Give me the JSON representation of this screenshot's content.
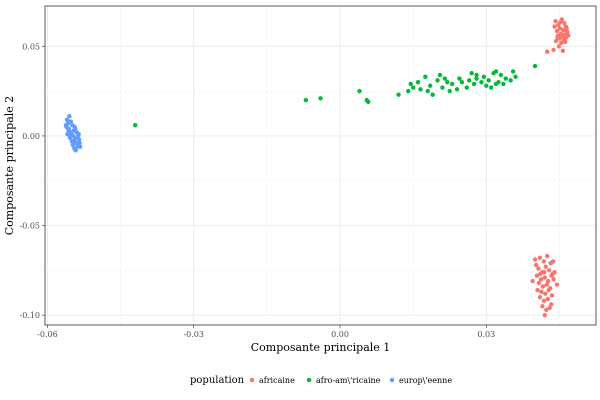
{
  "chart_data": {
    "type": "scatter",
    "title": "",
    "xlabel": "Composante principale 1",
    "ylabel": "Composante principale 2",
    "xlim": [
      -0.0605,
      0.0525
    ],
    "ylim": [
      -0.1055,
      0.0725
    ],
    "x_ticks": [
      -0.06,
      -0.03,
      0.0,
      0.03
    ],
    "x_tick_labels": [
      "-0.06",
      "-0.03",
      "0.00",
      "0.03"
    ],
    "y_ticks": [
      -0.1,
      -0.05,
      0.0,
      0.05
    ],
    "y_tick_labels": [
      "-0.10",
      "-0.05",
      "0.00",
      "0.05"
    ],
    "grid": true,
    "legend": {
      "title": "population",
      "placement": "bottom",
      "entries": [
        "africaine",
        "afro-am\\'ricaine",
        "europ\\'eenne"
      ]
    },
    "series": [
      {
        "name": "africaine",
        "color": "#F8766D",
        "points": [
          [
            0.0442,
            0.064
          ],
          [
            0.0455,
            0.065
          ],
          [
            0.046,
            0.063
          ],
          [
            0.0448,
            0.062
          ],
          [
            0.0463,
            0.061
          ],
          [
            0.0451,
            0.06
          ],
          [
            0.0458,
            0.059
          ],
          [
            0.0445,
            0.0585
          ],
          [
            0.0466,
            0.058
          ],
          [
            0.0453,
            0.057
          ],
          [
            0.0461,
            0.0565
          ],
          [
            0.0447,
            0.056
          ],
          [
            0.0456,
            0.0555
          ],
          [
            0.0464,
            0.055
          ],
          [
            0.045,
            0.0545
          ],
          [
            0.0459,
            0.054
          ],
          [
            0.0443,
            0.053
          ],
          [
            0.0462,
            0.0525
          ],
          [
            0.0454,
            0.052
          ],
          [
            0.0438,
            0.048
          ],
          [
            0.0425,
            0.047
          ],
          [
            0.0457,
            0.0475
          ],
          [
            0.0449,
            0.05
          ],
          [
            0.0465,
            0.06
          ],
          [
            0.044,
            0.061
          ],
          [
            0.0452,
            0.0635
          ],
          [
            0.0468,
            0.056
          ],
          [
            0.0446,
            0.055
          ],
          [
            0.0402,
            -0.072
          ],
          [
            0.041,
            -0.068
          ],
          [
            0.0418,
            -0.07
          ],
          [
            0.0425,
            -0.067
          ],
          [
            0.0432,
            -0.071
          ],
          [
            0.0407,
            -0.074
          ],
          [
            0.0415,
            -0.076
          ],
          [
            0.0422,
            -0.073
          ],
          [
            0.0429,
            -0.075
          ],
          [
            0.0436,
            -0.077
          ],
          [
            0.0404,
            -0.078
          ],
          [
            0.0412,
            -0.08
          ],
          [
            0.042,
            -0.079
          ],
          [
            0.0427,
            -0.081
          ],
          [
            0.0434,
            -0.078
          ],
          [
            0.0408,
            -0.082
          ],
          [
            0.0416,
            -0.084
          ],
          [
            0.0424,
            -0.083
          ],
          [
            0.0431,
            -0.085
          ],
          [
            0.0438,
            -0.08
          ],
          [
            0.0405,
            -0.086
          ],
          [
            0.0413,
            -0.087
          ],
          [
            0.0421,
            -0.088
          ],
          [
            0.0428,
            -0.086
          ],
          [
            0.0435,
            -0.089
          ],
          [
            0.041,
            -0.09
          ],
          [
            0.0418,
            -0.092
          ],
          [
            0.0426,
            -0.091
          ],
          [
            0.0433,
            -0.094
          ],
          [
            0.0415,
            -0.095
          ],
          [
            0.0423,
            -0.097
          ],
          [
            0.043,
            -0.096
          ],
          [
            0.042,
            -0.1
          ],
          [
            0.044,
            -0.076
          ],
          [
            0.0395,
            -0.081
          ],
          [
            0.0445,
            -0.083
          ],
          [
            0.04,
            -0.069
          ],
          [
            0.0437,
            -0.07
          ],
          [
            0.0419,
            -0.076
          ],
          [
            0.0411,
            -0.077
          ]
        ]
      },
      {
        "name": "afro-am\\'ricaine",
        "color": "#00BA38",
        "points": [
          [
            -0.042,
            0.006
          ],
          [
            -0.007,
            0.02
          ],
          [
            -0.004,
            0.021
          ],
          [
            0.004,
            0.025
          ],
          [
            0.0055,
            0.02
          ],
          [
            0.0058,
            0.019
          ],
          [
            0.012,
            0.023
          ],
          [
            0.014,
            0.025
          ],
          [
            0.0145,
            0.029
          ],
          [
            0.015,
            0.027
          ],
          [
            0.016,
            0.03
          ],
          [
            0.0165,
            0.026
          ],
          [
            0.0175,
            0.033
          ],
          [
            0.018,
            0.025
          ],
          [
            0.0185,
            0.028
          ],
          [
            0.019,
            0.023
          ],
          [
            0.02,
            0.031
          ],
          [
            0.0205,
            0.034
          ],
          [
            0.021,
            0.027
          ],
          [
            0.022,
            0.03
          ],
          [
            0.0225,
            0.025
          ],
          [
            0.023,
            0.029
          ],
          [
            0.024,
            0.026
          ],
          [
            0.0245,
            0.032
          ],
          [
            0.025,
            0.03
          ],
          [
            0.026,
            0.027
          ],
          [
            0.027,
            0.035
          ],
          [
            0.0275,
            0.029
          ],
          [
            0.028,
            0.032
          ],
          [
            0.029,
            0.03
          ],
          [
            0.0295,
            0.033
          ],
          [
            0.03,
            0.028
          ],
          [
            0.0305,
            0.031
          ],
          [
            0.031,
            0.027
          ],
          [
            0.032,
            0.036
          ],
          [
            0.0325,
            0.03
          ],
          [
            0.033,
            0.034
          ],
          [
            0.0335,
            0.029
          ],
          [
            0.034,
            0.032
          ],
          [
            0.035,
            0.031
          ],
          [
            0.0355,
            0.036
          ],
          [
            0.028,
            0.034
          ],
          [
            0.0265,
            0.031
          ],
          [
            0.032,
            0.029
          ],
          [
            0.04,
            0.039
          ],
          [
            0.036,
            0.033
          ],
          [
            0.0315,
            0.035
          ],
          [
            0.0215,
            0.032
          ]
        ]
      },
      {
        "name": "europ\\'eenne",
        "color": "#619CFF",
        "points": [
          [
            -0.056,
            0.009
          ],
          [
            -0.0555,
            0.011
          ],
          [
            -0.0558,
            0.007
          ],
          [
            -0.0552,
            0.008
          ],
          [
            -0.0561,
            0.005
          ],
          [
            -0.0549,
            0.006
          ],
          [
            -0.0556,
            0.004
          ],
          [
            -0.0546,
            0.003
          ],
          [
            -0.0553,
            0.002
          ],
          [
            -0.0543,
            0.004
          ],
          [
            -0.0559,
            0.001
          ],
          [
            -0.0547,
            0.0
          ],
          [
            -0.054,
            0.002
          ],
          [
            -0.0554,
            -0.001
          ],
          [
            -0.0544,
            -0.002
          ],
          [
            -0.0537,
            0.0
          ],
          [
            -0.055,
            -0.003
          ],
          [
            -0.0541,
            -0.004
          ],
          [
            -0.0535,
            -0.002
          ],
          [
            -0.0548,
            -0.005
          ],
          [
            -0.0538,
            -0.006
          ],
          [
            -0.0545,
            -0.007
          ],
          [
            -0.0534,
            -0.004
          ],
          [
            -0.0542,
            -0.008
          ],
          [
            -0.0557,
            0.003
          ],
          [
            -0.0551,
            0.001
          ],
          [
            -0.0539,
            -0.001
          ],
          [
            -0.0536,
            0.001
          ],
          [
            -0.0562,
            0.006
          ],
          [
            -0.0544,
            0.005
          ],
          [
            -0.0533,
            -0.006
          ],
          [
            -0.0547,
            -0.003
          ]
        ]
      }
    ]
  }
}
